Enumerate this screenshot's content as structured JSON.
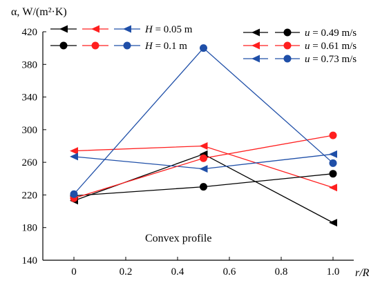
{
  "chart_data": {
    "type": "line",
    "ylabel": "α, W/(m²·K)",
    "xlabel": "r/R",
    "x": [
      0,
      0.5,
      1.0
    ],
    "xlim": [
      -0.12,
      1.08
    ],
    "ylim": [
      140,
      420
    ],
    "xticks": [
      "0",
      "0.2",
      "0.4",
      "0.6",
      "0.8",
      "1.0"
    ],
    "xtick_values": [
      0,
      0.2,
      0.4,
      0.6,
      0.8,
      1.0
    ],
    "yticks": [
      "140",
      "180",
      "220",
      "260",
      "300",
      "340",
      "380",
      "420"
    ],
    "ytick_values": [
      140,
      180,
      220,
      260,
      300,
      340,
      380,
      420
    ],
    "annotation": "Convex profile",
    "grid": false,
    "legend": {
      "height_entries": [
        {
          "label": "H = 0.05 m",
          "marker": "triangle"
        },
        {
          "label": "H = 0.1 m",
          "marker": "circle"
        }
      ],
      "velocity_entries": [
        {
          "label": "u = 0.49 m/s",
          "color": "#000000"
        },
        {
          "label": "u = 0.61 m/s",
          "color": "#ff1f1f"
        },
        {
          "label": "u = 0.73 m/s",
          "color": "#1f4fa8"
        }
      ]
    },
    "series": [
      {
        "key": "H005-u049",
        "marker": "triangle",
        "color": "#000000",
        "values": [
          213,
          270,
          186
        ]
      },
      {
        "key": "H005-u061",
        "marker": "triangle",
        "color": "#ff1f1f",
        "values": [
          274,
          280,
          229
        ]
      },
      {
        "key": "H005-u073",
        "marker": "triangle",
        "color": "#1f4fa8",
        "values": [
          267,
          252,
          270
        ]
      },
      {
        "key": "H01-u049",
        "marker": "circle",
        "color": "#000000",
        "values": [
          219,
          230,
          246
        ]
      },
      {
        "key": "H01-u061",
        "marker": "circle",
        "color": "#ff1f1f",
        "values": [
          216,
          265,
          293
        ]
      },
      {
        "key": "H01-u073",
        "marker": "circle",
        "color": "#1f4fa8",
        "values": [
          221,
          400,
          259
        ]
      }
    ]
  }
}
